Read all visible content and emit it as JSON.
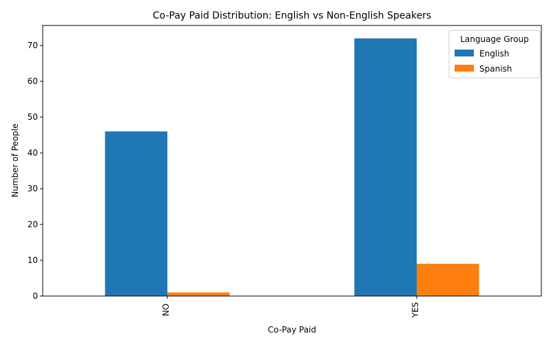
{
  "chart_data": {
    "type": "bar",
    "title": "Co-Pay Paid Distribution: English vs Non-English Speakers",
    "xlabel": "Co-Pay Paid",
    "ylabel": "Number of People",
    "categories": [
      "NO",
      "YES"
    ],
    "series": [
      {
        "name": "English",
        "values": [
          46,
          72
        ],
        "color": "#1f77b4"
      },
      {
        "name": "Spanish",
        "values": [
          1,
          9
        ],
        "color": "#ff7f0e"
      }
    ],
    "ylim": [
      0,
      75.6
    ],
    "yticks": [
      0,
      10,
      20,
      30,
      40,
      50,
      60,
      70
    ],
    "grid": false,
    "legend": {
      "title": "Language Group",
      "placement": "top-right"
    }
  }
}
